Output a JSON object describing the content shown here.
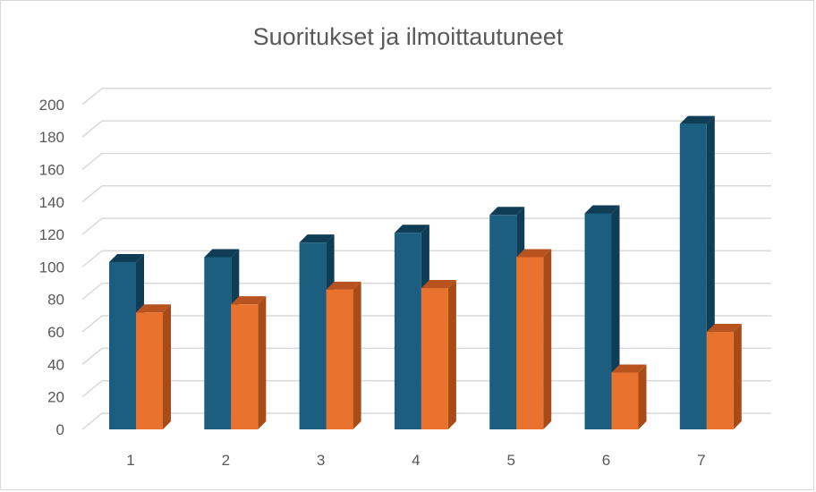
{
  "chart_data": {
    "type": "bar",
    "title": "Suoritukset ja ilmoittautuneet",
    "xlabel": "",
    "ylabel": "",
    "categories": [
      "1",
      "2",
      "3",
      "4",
      "5",
      "6",
      "7"
    ],
    "series": [
      {
        "values": [
          103,
          106,
          115,
          121,
          132,
          133,
          188
        ]
      },
      {
        "values": [
          72,
          77,
          86,
          87,
          106,
          35,
          60
        ]
      }
    ],
    "ylim": [
      0,
      200
    ],
    "yticks": [
      "0",
      "20",
      "40",
      "60",
      "80",
      "100",
      "120",
      "140",
      "160",
      "180",
      "200"
    ],
    "grid": true,
    "three_d": true,
    "colors": {
      "series_front": [
        "#1b5e80",
        "#e8722e"
      ],
      "series_side": [
        "#0f3d56",
        "#a84b17"
      ],
      "series_top": [
        "#0f3d56",
        "#b85320"
      ],
      "grid": "#d9d9d9",
      "text": "#595959"
    }
  }
}
